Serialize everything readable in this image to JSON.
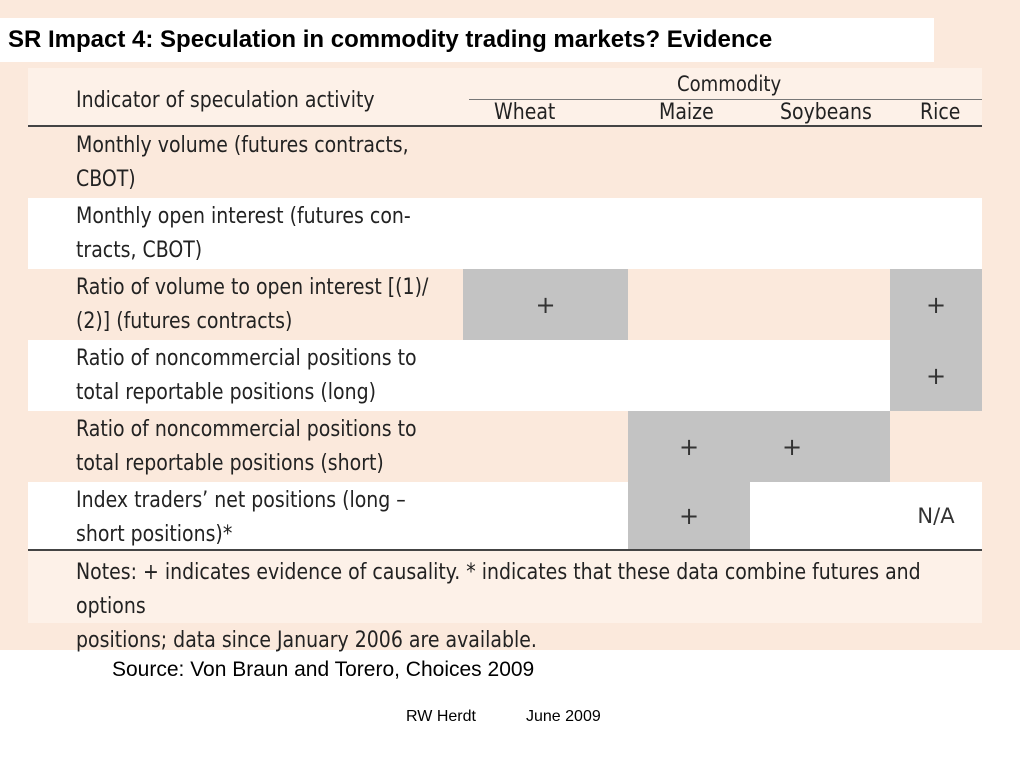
{
  "slide": {
    "title": "SR Impact 4: Speculation in commodity trading markets?  Evidence",
    "source": "Source: Von Braun and Torero, Choices 2009",
    "footer_author": "RW Herdt",
    "footer_date": "June 2009"
  },
  "table": {
    "header_group": "Commodity",
    "header_indicator": "Indicator of speculation activity",
    "columns": [
      "Wheat",
      "Maize",
      "Soybeans",
      "Rice"
    ],
    "rows": [
      {
        "label_lines": [
          "Monthly volume (futures contracts,",
          "CBOT)"
        ],
        "cells": [
          "",
          "",
          "",
          ""
        ]
      },
      {
        "label_lines": [
          "Monthly open interest (futures con-",
          "tracts, CBOT)"
        ],
        "cells": [
          "",
          "",
          "",
          ""
        ]
      },
      {
        "label_lines": [
          "Ratio of volume to open interest [(1)/",
          "(2)] (futures contracts)"
        ],
        "cells": [
          "+",
          "",
          "",
          "+"
        ]
      },
      {
        "label_lines": [
          "Ratio of noncommercial positions to",
          "total reportable positions (long)"
        ],
        "cells": [
          "",
          "",
          "",
          "+"
        ]
      },
      {
        "label_lines": [
          "Ratio of noncommercial positions to",
          "total reportable positions (short)"
        ],
        "cells": [
          "",
          "+",
          "+",
          ""
        ]
      },
      {
        "label_lines": [
          "Index traders’ net positions (long –",
          "short positions)*"
        ],
        "cells": [
          "",
          "+",
          "",
          "N/A"
        ]
      }
    ],
    "notes_lines": [
      "Notes: + indicates evidence of causality. * indicates that these data combine futures and options",
      "positions; data since January 2006 are available."
    ]
  }
}
